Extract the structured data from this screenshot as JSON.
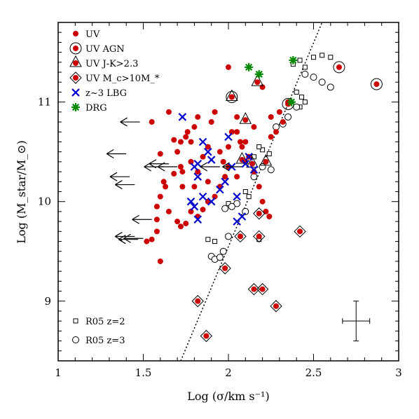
{
  "chart_data": {
    "type": "scatter",
    "xlabel": "Log (σ/km s⁻¹)",
    "ylabel": "Log (M_star/M_⊙)",
    "xlim": [
      1,
      3
    ],
    "ylim": [
      8.4,
      11.8
    ],
    "x_ticks": [
      "1",
      "1.5",
      "2",
      "2.5",
      "3"
    ],
    "y_ticks": [
      "9",
      "10",
      "11"
    ],
    "legend_top": [
      {
        "key": "uv",
        "label": "UV"
      },
      {
        "key": "uv_agn",
        "label": "UV AGN"
      },
      {
        "key": "uv_jk",
        "label": "UV J-K>2.3"
      },
      {
        "key": "uv_mc",
        "label": "UV M_c>10M_*"
      },
      {
        "key": "lbg",
        "label": "z~3 LBG"
      },
      {
        "key": "drg",
        "label": "DRG"
      }
    ],
    "legend_bottom": [
      {
        "key": "r05_z2",
        "label": "R05 z=2"
      },
      {
        "key": "r05_z3",
        "label": "R05 z=3"
      }
    ],
    "colors": {
      "uv": "#cc0000",
      "lbg": "#0000cc",
      "drg": "#008800"
    },
    "series": {
      "uv": [
        [
          1.55,
          10.8
        ],
        [
          1.65,
          10.9
        ],
        [
          1.7,
          10.5
        ],
        [
          1.75,
          10.65
        ],
        [
          1.76,
          10.7
        ],
        [
          1.78,
          10.6
        ],
        [
          1.8,
          10.75
        ],
        [
          1.82,
          10.85
        ],
        [
          1.78,
          10.4
        ],
        [
          1.72,
          10.35
        ],
        [
          1.68,
          10.28
        ],
        [
          1.62,
          10.2
        ],
        [
          1.6,
          10.05
        ],
        [
          1.58,
          9.95
        ],
        [
          1.65,
          9.9
        ],
        [
          1.7,
          9.8
        ],
        [
          1.72,
          9.75
        ],
        [
          1.75,
          9.78
        ],
        [
          1.73,
          10.15
        ],
        [
          1.8,
          10.15
        ],
        [
          1.82,
          10.3
        ],
        [
          1.85,
          10.45
        ],
        [
          1.88,
          10.55
        ],
        [
          1.9,
          10.8
        ],
        [
          1.92,
          10.9
        ],
        [
          1.95,
          10.5
        ],
        [
          1.97,
          10.4
        ],
        [
          2.0,
          10.55
        ],
        [
          2.02,
          10.7
        ],
        [
          2.05,
          10.85
        ],
        [
          2.07,
          10.6
        ],
        [
          2.08,
          10.55
        ],
        [
          2.1,
          10.6
        ],
        [
          2.12,
          10.45
        ],
        [
          2.15,
          10.3
        ],
        [
          2.18,
          10.15
        ],
        [
          2.2,
          10.0
        ],
        [
          2.22,
          9.9
        ],
        [
          2.24,
          9.85
        ],
        [
          2.0,
          10.35
        ],
        [
          1.98,
          10.25
        ],
        [
          1.95,
          10.15
        ],
        [
          1.92,
          10.05
        ],
        [
          1.88,
          10.0
        ],
        [
          1.85,
          9.92
        ],
        [
          1.82,
          9.85
        ],
        [
          1.78,
          9.9
        ],
        [
          1.6,
          10.48
        ],
        [
          1.58,
          9.7
        ],
        [
          1.55,
          9.62
        ],
        [
          1.52,
          9.6
        ],
        [
          1.6,
          9.4
        ],
        [
          1.58,
          9.82
        ],
        [
          1.63,
          10.15
        ],
        [
          1.68,
          10.62
        ],
        [
          1.72,
          10.6
        ],
        [
          1.73,
          10.3
        ],
        [
          1.88,
          10.2
        ],
        [
          2.05,
          10.25
        ],
        [
          2.1,
          10.4
        ],
        [
          2.25,
          10.65
        ],
        [
          2.3,
          10.9
        ],
        [
          2.35,
          11.0
        ],
        [
          2.0,
          11.35
        ],
        [
          2.2,
          11.15
        ],
        [
          2.05,
          10.7
        ],
        [
          2.15,
          10.75
        ],
        [
          2.25,
          10.85
        ],
        [
          2.32,
          10.8
        ],
        [
          2.28,
          10.7
        ]
      ],
      "uv_agn": [
        [
          2.02,
          11.05
        ],
        [
          2.35,
          10.98
        ],
        [
          2.65,
          11.35
        ],
        [
          2.87,
          11.18
        ]
      ],
      "uv_jk": [
        [
          2.02,
          11.05
        ],
        [
          2.1,
          10.82
        ],
        [
          2.17,
          11.2
        ],
        [
          2.08,
          10.42
        ],
        [
          2.14,
          10.38
        ],
        [
          2.22,
          10.4
        ]
      ],
      "uv_mc": [
        [
          2.18,
          9.88
        ],
        [
          2.42,
          9.7
        ],
        [
          2.07,
          9.65
        ],
        [
          2.18,
          9.65
        ],
        [
          1.98,
          9.33
        ],
        [
          2.15,
          9.12
        ],
        [
          2.2,
          9.12
        ],
        [
          1.82,
          9.0
        ],
        [
          2.28,
          8.95
        ],
        [
          1.87,
          8.65
        ]
      ],
      "lbg": [
        [
          1.73,
          10.85
        ],
        [
          1.8,
          10.35
        ],
        [
          1.82,
          10.38
        ],
        [
          1.85,
          10.6
        ],
        [
          1.88,
          10.5
        ],
        [
          1.82,
          10.25
        ],
        [
          1.78,
          10.0
        ],
        [
          1.8,
          9.95
        ],
        [
          1.85,
          10.05
        ],
        [
          1.9,
          10.0
        ],
        [
          1.95,
          10.12
        ],
        [
          1.98,
          10.2
        ],
        [
          2.0,
          10.65
        ],
        [
          2.02,
          10.35
        ],
        [
          2.05,
          10.05
        ],
        [
          2.08,
          9.85
        ],
        [
          2.05,
          9.8
        ],
        [
          1.82,
          9.82
        ],
        [
          2.1,
          10.38
        ],
        [
          2.15,
          10.32
        ],
        [
          2.12,
          10.45
        ],
        [
          1.9,
          10.42
        ]
      ],
      "drg": [
        [
          2.12,
          11.35
        ],
        [
          2.18,
          11.28
        ],
        [
          2.38,
          11.42
        ],
        [
          2.37,
          11.0
        ]
      ],
      "r05_z2": [
        [
          2.38,
          11.38
        ],
        [
          2.42,
          11.42
        ],
        [
          2.5,
          11.45
        ],
        [
          2.55,
          11.47
        ],
        [
          2.6,
          11.45
        ],
        [
          2.45,
          11.35
        ],
        [
          2.4,
          11.1
        ],
        [
          2.43,
          11.05
        ],
        [
          2.45,
          11.0
        ],
        [
          2.42,
          10.95
        ],
        [
          2.2,
          10.52
        ],
        [
          2.24,
          10.48
        ],
        [
          2.18,
          10.55
        ],
        [
          2.15,
          10.45
        ],
        [
          2.1,
          10.1
        ],
        [
          2.12,
          10.05
        ],
        [
          2.18,
          9.62
        ],
        [
          1.88,
          9.62
        ],
        [
          1.92,
          9.6
        ],
        [
          2.0,
          9.98
        ]
      ],
      "r05_z3": [
        [
          2.5,
          11.25
        ],
        [
          2.55,
          11.2
        ],
        [
          2.6,
          11.15
        ],
        [
          2.45,
          11.28
        ],
        [
          2.4,
          10.95
        ],
        [
          2.35,
          10.85
        ],
        [
          2.32,
          10.78
        ],
        [
          2.28,
          10.75
        ],
        [
          2.2,
          10.35
        ],
        [
          2.25,
          10.32
        ],
        [
          2.15,
          10.25
        ],
        [
          2.05,
          9.98
        ],
        [
          2.02,
          9.95
        ],
        [
          1.98,
          9.93
        ],
        [
          2.1,
          9.9
        ],
        [
          1.9,
          9.45
        ],
        [
          1.92,
          9.42
        ],
        [
          1.95,
          9.44
        ],
        [
          1.97,
          9.5
        ],
        [
          2.0,
          9.65
        ]
      ],
      "upper_limits": [
        [
          1.48,
          10.8
        ],
        [
          1.4,
          10.48
        ],
        [
          1.42,
          10.25
        ],
        [
          1.45,
          10.17
        ],
        [
          1.62,
          10.35
        ],
        [
          1.65,
          10.38
        ],
        [
          1.7,
          10.35
        ],
        [
          1.55,
          9.82
        ],
        [
          1.45,
          9.65
        ],
        [
          1.47,
          9.62
        ],
        [
          1.5,
          9.63
        ],
        [
          1.95,
          10.35
        ],
        [
          2.08,
          10.35
        ]
      ],
      "relation_line": [
        [
          1.72,
          8.4
        ],
        [
          2.55,
          11.8
        ]
      ],
      "error_bar": {
        "x": 2.75,
        "y": 8.8,
        "dx": 0.08,
        "dy": 0.2
      }
    }
  }
}
